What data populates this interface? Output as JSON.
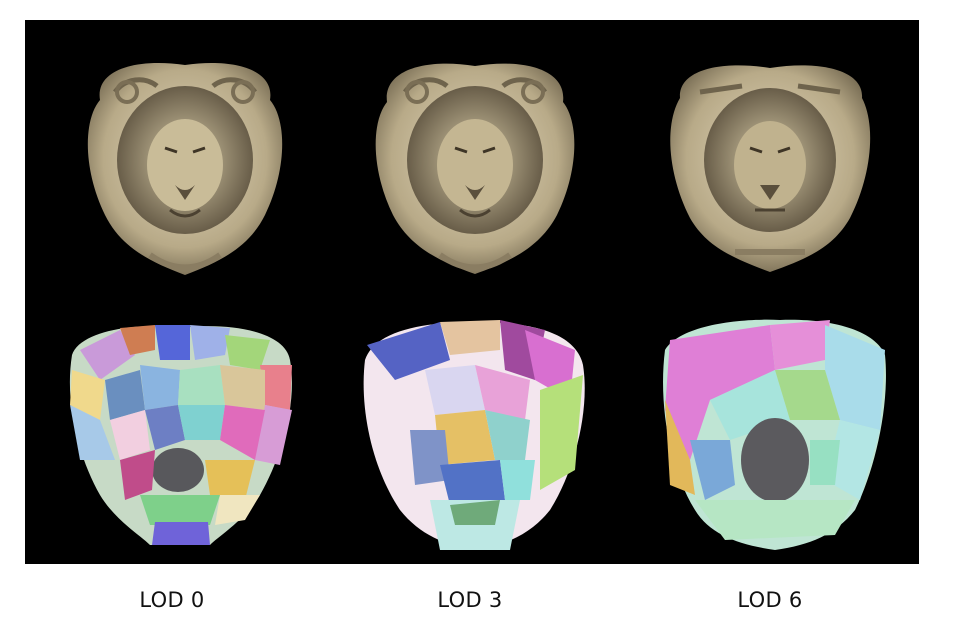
{
  "figure": {
    "labels": [
      "LOD 0",
      "LOD 3",
      "LOD 6"
    ],
    "rows": [
      "textured-render",
      "segmented-render"
    ],
    "colors": {
      "background": "#000000",
      "stone": "#cdbf9e",
      "stone_dark": "#6f634c",
      "stone_light": "#e8dfc8"
    }
  }
}
